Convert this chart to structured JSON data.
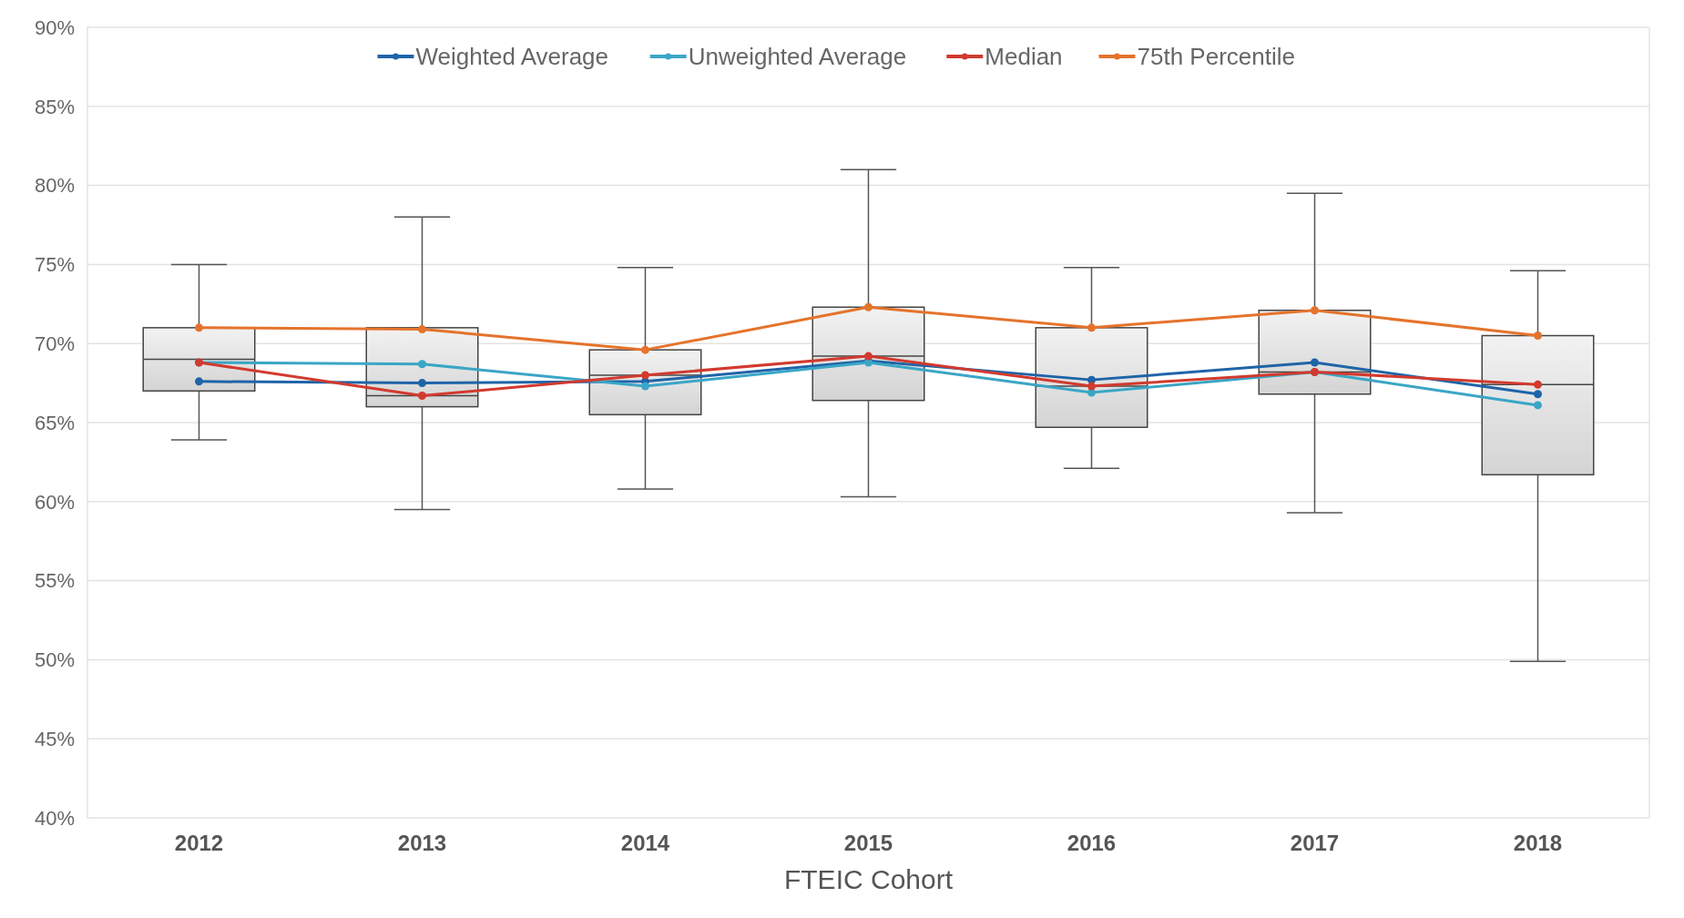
{
  "chart_data": {
    "type": "box",
    "xlabel": "FTEIC Cohort",
    "categories": [
      "2012",
      "2013",
      "2014",
      "2015",
      "2016",
      "2017",
      "2018"
    ],
    "boxes": [
      {
        "low": 63.9,
        "q1": 67.0,
        "median": 69.0,
        "q3": 71.0,
        "high": 75.0
      },
      {
        "low": 59.5,
        "q1": 66.0,
        "median": 66.7,
        "q3": 71.0,
        "high": 78.0
      },
      {
        "low": 60.8,
        "q1": 65.5,
        "median": 68.0,
        "q3": 69.6,
        "high": 74.8
      },
      {
        "low": 60.3,
        "q1": 66.4,
        "median": 69.2,
        "q3": 72.3,
        "high": 81.0
      },
      {
        "low": 62.1,
        "q1": 64.7,
        "median": 67.3,
        "q3": 71.0,
        "high": 74.8
      },
      {
        "low": 59.3,
        "q1": 66.8,
        "median": 68.2,
        "q3": 72.1,
        "high": 79.5
      },
      {
        "low": 49.9,
        "q1": 61.7,
        "median": 67.4,
        "q3": 70.5,
        "high": 74.6
      }
    ],
    "series": [
      {
        "name": "Weighted Average",
        "type": "line",
        "color": "#1f64a8",
        "values": [
          67.6,
          67.5,
          67.6,
          68.9,
          67.7,
          68.8,
          66.8
        ]
      },
      {
        "name": "Unweighted Average",
        "type": "line",
        "color": "#3aa6c6",
        "values": [
          68.8,
          68.7,
          67.3,
          68.8,
          66.9,
          68.2,
          66.1
        ]
      },
      {
        "name": "Median",
        "type": "line",
        "color": "#d23a2e",
        "values": [
          68.8,
          66.7,
          68.0,
          69.2,
          67.3,
          68.2,
          67.4
        ]
      },
      {
        "name": "75th Percentile",
        "type": "line",
        "color": "#e5732c",
        "values": [
          71.0,
          70.9,
          69.6,
          72.3,
          71.0,
          72.1,
          70.5
        ]
      }
    ],
    "ylim": [
      40,
      90
    ],
    "yticks": [
      {
        "value": 40,
        "label": "40%"
      },
      {
        "value": 45,
        "label": "45%"
      },
      {
        "value": 50,
        "label": "50%"
      },
      {
        "value": 55,
        "label": "55%"
      },
      {
        "value": 60,
        "label": "60%"
      },
      {
        "value": 65,
        "label": "65%"
      },
      {
        "value": 70,
        "label": "70%"
      },
      {
        "value": 75,
        "label": "75%"
      },
      {
        "value": 80,
        "label": "80%"
      },
      {
        "value": 85,
        "label": "85%"
      },
      {
        "value": 90,
        "label": "90%"
      }
    ],
    "grid": "y",
    "legend": "top",
    "marker": "circle",
    "line_style": "solid"
  }
}
